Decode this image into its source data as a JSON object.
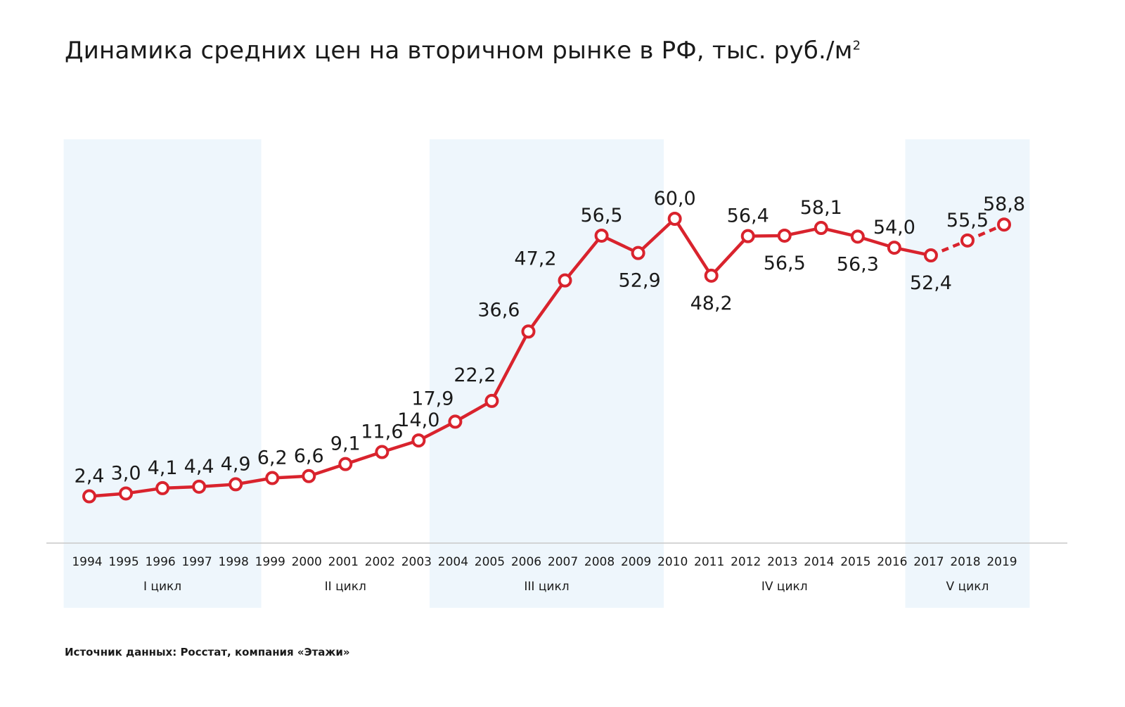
{
  "title": {
    "main": "Динамика средних цен на вторичном рынке в РФ, тыс. руб./м",
    "superscript": "2"
  },
  "source": "Источник данных: Росстат, компания «Этажи»",
  "colors": {
    "line": "#d9232d",
    "marker_fill": "#ffffff",
    "cycle_band": "#eef6fc",
    "axis": "#c8c8c8",
    "text": "#1a1a1a"
  },
  "chart_data": {
    "type": "line",
    "title": "Динамика средних цен на вторичном рынке в РФ, тыс. руб./м²",
    "xlabel": "",
    "ylabel": "",
    "categories": [
      "1994",
      "1995",
      "1996",
      "1997",
      "1998",
      "1999",
      "2000",
      "2001",
      "2002",
      "2003",
      "2004",
      "2005",
      "2006",
      "2007",
      "2008",
      "2009",
      "2010",
      "2011",
      "2012",
      "2013",
      "2014",
      "2015",
      "2016",
      "2017",
      "2018",
      "2019"
    ],
    "series": [
      {
        "values": [
          2.4,
          3.0,
          4.1,
          4.4,
          4.9,
          6.2,
          6.6,
          9.1,
          11.6,
          14.0,
          17.9,
          22.2,
          36.6,
          47.2,
          56.5,
          52.9,
          60.0,
          48.2,
          56.4,
          56.5,
          58.1,
          56.3,
          54.0,
          52.4,
          55.5,
          58.8
        ],
        "labels": [
          "2,4",
          "3,0",
          "4,1",
          "4,4",
          "4,9",
          "6,2",
          "6,6",
          "9,1",
          "11,6",
          "14,0",
          "17,9",
          "22,2",
          "36,6",
          "47,2",
          "56,5",
          "52,9",
          "60,0",
          "48,2",
          "56,4",
          "56,5",
          "58,1",
          "56,3",
          "54,0",
          "52,4",
          "55,5",
          "58,8"
        ],
        "dashed_from_index": 23
      }
    ],
    "ylim": [
      0,
      60
    ],
    "grid": false,
    "legend": "none",
    "cycles": [
      {
        "label": "I цикл",
        "start": "1994",
        "end": "1998",
        "shaded": true
      },
      {
        "label": "II цикл",
        "start": "1999",
        "end": "2003",
        "shaded": false
      },
      {
        "label": "III цикл",
        "start": "2004",
        "end": "2009",
        "shaded": true
      },
      {
        "label": "IV цикл",
        "start": "2010",
        "end": "2016",
        "shaded": false
      },
      {
        "label": "V цикл",
        "start": "2017",
        "end": "2019",
        "shaded": true
      }
    ]
  }
}
